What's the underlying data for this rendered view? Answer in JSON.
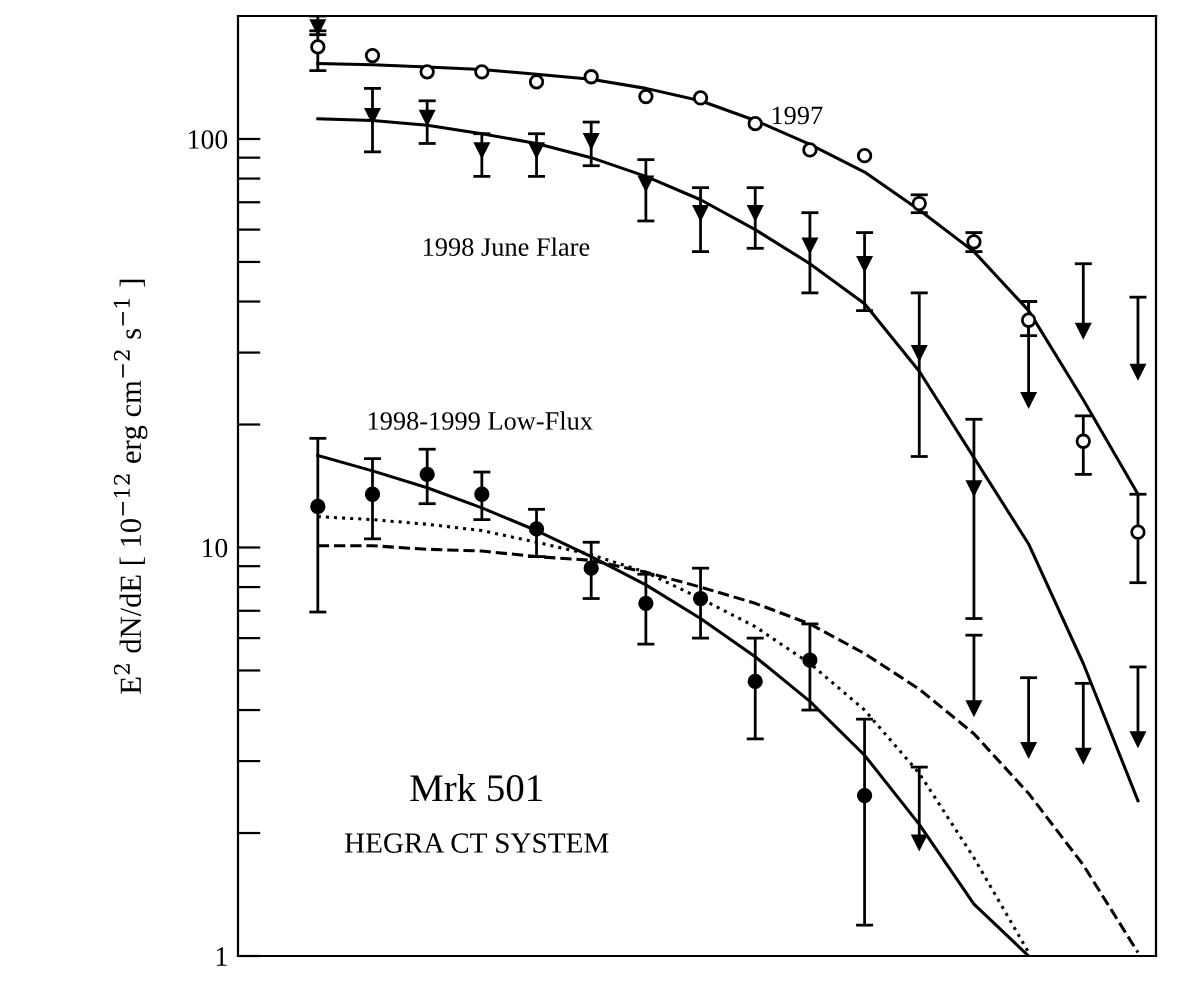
{
  "chart_data": {
    "type": "scatter",
    "ylabel": "E$^{2}$ dN/dE [ 10$^{−12}$ erg cm$^{−2}$ s$^{−1}$ ]",
    "categories": [
      null,
      null,
      null,
      null,
      null,
      null,
      null,
      null,
      null,
      null,
      null,
      null,
      null,
      null,
      null,
      null
    ],
    "log": "y",
    "ylim": [
      1,
      200
    ],
    "yticks": [
      1,
      {
        "value": 2,
        "label": null
      },
      {
        "value": 3,
        "label": null
      },
      {
        "value": 4,
        "label": null
      },
      {
        "value": 5,
        "label": null
      },
      {
        "value": 6,
        "label": null
      },
      {
        "value": 7,
        "label": null
      },
      {
        "value": 8,
        "label": null
      },
      {
        "value": 9,
        "label": null
      },
      10,
      {
        "value": 20,
        "label": null
      },
      {
        "value": 30,
        "label": null
      },
      {
        "value": 40,
        "label": null
      },
      {
        "value": 50,
        "label": null
      },
      {
        "value": 60,
        "label": null
      },
      {
        "value": 70,
        "label": null
      },
      {
        "value": 80,
        "label": null
      },
      {
        "value": 90,
        "label": null
      },
      100
    ],
    "tick_labels": "y",
    "grid": false,
    "legend": false,
    "annotations": [
      "Mrk 501",
      "HEGRA CT SYSTEM"
    ],
    "series": [
      {
        "name": "1997",
        "marker": "circle",
        "color": "#000000",
        "values": [
          168,
          160,
          146,
          146,
          138,
          142,
          127,
          126,
          109,
          94,
          91,
          69.5,
          56,
          36,
          18.2,
          10.9
        ],
        "errors": [
          [
            147,
            184
          ],
          null,
          null,
          null,
          null,
          null,
          null,
          null,
          null,
          null,
          null,
          [
            66,
            73
          ],
          [
            53,
            59
          ],
          [
            33,
            40
          ],
          [
            15.1,
            21
          ],
          [
            8.2,
            13.5
          ]
        ]
      },
      {
        "name": "1998 June Flare",
        "marker": "triangle",
        "color": "#000000",
        "values": [
          188,
          114,
          113,
          94,
          94,
          99,
          78,
          66,
          66,
          55,
          49.5,
          30,
          14,
          null,
          null,
          null
        ],
        "errors": [
          [
            180,
            200
          ],
          [
            93,
            133
          ],
          [
            97.5,
            124
          ],
          [
            81,
            103
          ],
          [
            81,
            103
          ],
          [
            86,
            110
          ],
          [
            63,
            89
          ],
          [
            53,
            76
          ],
          [
            54,
            76
          ],
          [
            42,
            66
          ],
          [
            38,
            59
          ],
          [
            16.7,
            42
          ],
          [
            6.7,
            20.6
          ],
          null,
          null,
          null
        ]
      },
      {
        "name": "1998-1999 Low-Flux",
        "marker": "circle",
        "color": "#000000",
        "values": [
          12.6,
          13.5,
          15.1,
          13.5,
          11.1,
          8.9,
          7.3,
          7.5,
          4.7,
          5.3,
          2.47,
          null,
          null,
          null,
          null,
          null
        ],
        "errors": [
          [
            6.95,
            18.5
          ],
          [
            10.5,
            16.5
          ],
          [
            12.8,
            17.4
          ],
          [
            11.7,
            15.3
          ],
          [
            9.5,
            12.4
          ],
          [
            7.5,
            10.3
          ],
          [
            5.8,
            8.6
          ],
          [
            6.0,
            8.9
          ],
          [
            3.4,
            6.0
          ],
          [
            4.0,
            6.5
          ],
          [
            1.19,
            3.8
          ],
          null,
          null,
          null,
          null,
          null
        ]
      },
      {
        "marker": "triangle",
        "color": "#000000",
        "values": [
          null,
          null,
          null,
          null,
          null,
          null,
          null,
          null,
          null,
          null,
          null,
          null,
          null,
          23,
          34,
          27
        ],
        "errors": [
          null,
          null,
          null,
          null,
          null,
          null,
          null,
          null,
          null,
          null,
          null,
          null,
          null,
          [
            23,
            40
          ],
          [
            34,
            49.5
          ],
          [
            27,
            41
          ]
        ]
      },
      {
        "marker": "triangle",
        "color": "#000000",
        "values": [
          null,
          null,
          null,
          null,
          null,
          null,
          null,
          null,
          null,
          null,
          null,
          null,
          4.05,
          3.2,
          3.1,
          3.4
        ],
        "errors": [
          null,
          null,
          null,
          null,
          null,
          null,
          null,
          null,
          null,
          null,
          null,
          null,
          [
            4.05,
            6.1
          ],
          [
            3.2,
            4.8
          ],
          [
            3.1,
            4.65
          ],
          [
            3.4,
            5.1
          ]
        ]
      },
      {
        "marker": "triangle",
        "color": "#000000",
        "values": [
          null,
          null,
          null,
          null,
          null,
          null,
          null,
          null,
          null,
          null,
          null,
          1.9,
          null,
          null,
          null,
          null
        ],
        "errors": [
          null,
          null,
          null,
          null,
          null,
          null,
          null,
          null,
          null,
          null,
          null,
          [
            1.9,
            2.9
          ],
          null,
          null,
          null,
          null
        ]
      },
      {
        "type": "line",
        "line_style": "solid",
        "color": "#000000",
        "values": [
          153,
          152,
          150,
          148,
          144,
          140,
          133,
          124,
          111,
          97,
          83,
          67,
          53,
          38,
          23,
          13.5
        ]
      },
      {
        "type": "line",
        "line_style": "solid",
        "color": "#000000",
        "values": [
          112,
          111,
          108,
          103,
          97.5,
          90,
          81,
          71,
          60,
          49.5,
          39.5,
          27,
          16.6,
          10.2,
          5.2,
          2.4
        ]
      },
      {
        "type": "line",
        "line_style": "solid",
        "color": "#000000",
        "values": [
          16.8,
          15.4,
          14,
          12.5,
          11,
          9.5,
          8.1,
          6.7,
          5.4,
          4.2,
          3.1,
          2.1,
          1.34,
          1.0,
          null,
          null
        ]
      },
      {
        "type": "line",
        "line_style": "dotted",
        "color": "#000000",
        "values": [
          11.9,
          11.7,
          11.4,
          11,
          10.3,
          9.6,
          8.7,
          7.5,
          6.4,
          5.2,
          4.0,
          2.8,
          1.74,
          1.02,
          null,
          null
        ]
      },
      {
        "type": "line",
        "line_style": "dashed",
        "color": "#000000",
        "values": [
          10.1,
          10.1,
          9.9,
          9.8,
          9.5,
          9.3,
          8.7,
          8.0,
          7.3,
          6.5,
          5.5,
          4.5,
          3.5,
          2.5,
          1.67,
          1.02
        ]
      }
    ]
  }
}
